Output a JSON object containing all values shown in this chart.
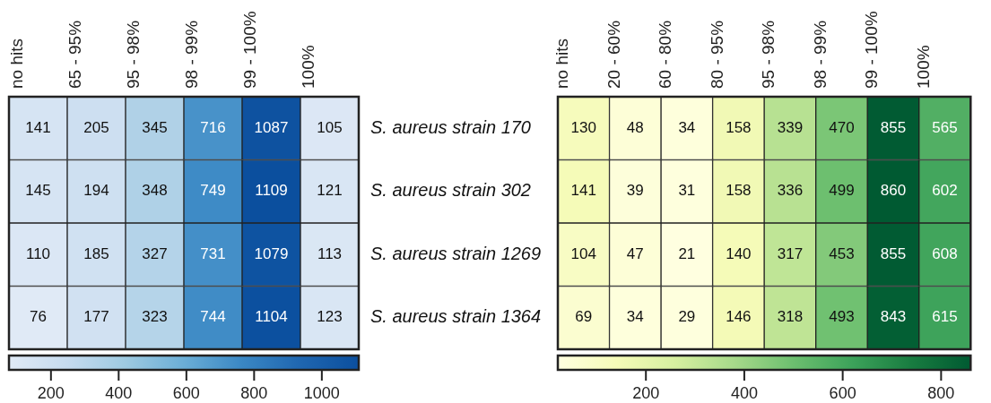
{
  "chart_data": [
    {
      "type": "heatmap",
      "categories": [
        "no hits",
        "65 - 95%",
        "95 - 98%",
        "98 - 99%",
        "99 - 100%",
        "100%"
      ],
      "y_categories": [
        "S. aureus strain 170",
        "S. aureus strain 302",
        "S. aureus strain 1269",
        "S. aureus strain 1364"
      ],
      "cells": [
        [
          141,
          205,
          345,
          716,
          1087,
          105
        ],
        [
          145,
          194,
          348,
          749,
          1109,
          121
        ],
        [
          110,
          185,
          327,
          731,
          1079,
          113
        ],
        [
          76,
          177,
          323,
          744,
          1104,
          123
        ]
      ],
      "data_labels": true,
      "clim": [
        76,
        1109
      ],
      "cticks": [
        200,
        400,
        600,
        800,
        1000
      ],
      "colors": [
        "#e0eaf6",
        "#c6dbef",
        "#9ecae1",
        "#6baed6",
        "#3a87c4",
        "#1f66b0",
        "#0b4f9e"
      ]
    },
    {
      "type": "heatmap",
      "categories": [
        "no hits",
        "20 - 60%",
        "60 - 80%",
        "80 - 95%",
        "95 - 98%",
        "98 - 99%",
        "99 - 100%",
        "100%"
      ],
      "y_categories": [
        null,
        null,
        null,
        null
      ],
      "cells": [
        [
          130,
          48,
          34,
          158,
          339,
          470,
          855,
          565
        ],
        [
          141,
          39,
          31,
          158,
          336,
          499,
          860,
          602
        ],
        [
          104,
          47,
          21,
          140,
          317,
          453,
          855,
          608
        ],
        [
          69,
          34,
          29,
          146,
          318,
          493,
          843,
          615
        ]
      ],
      "data_labels": true,
      "clim": [
        21,
        860
      ],
      "cticks": [
        200,
        400,
        600,
        800
      ],
      "colors": [
        "#ffffe0",
        "#f5fbb8",
        "#d6efa0",
        "#a6d98a",
        "#6cbf6f",
        "#3ca25a",
        "#187c40",
        "#005a32"
      ]
    }
  ]
}
